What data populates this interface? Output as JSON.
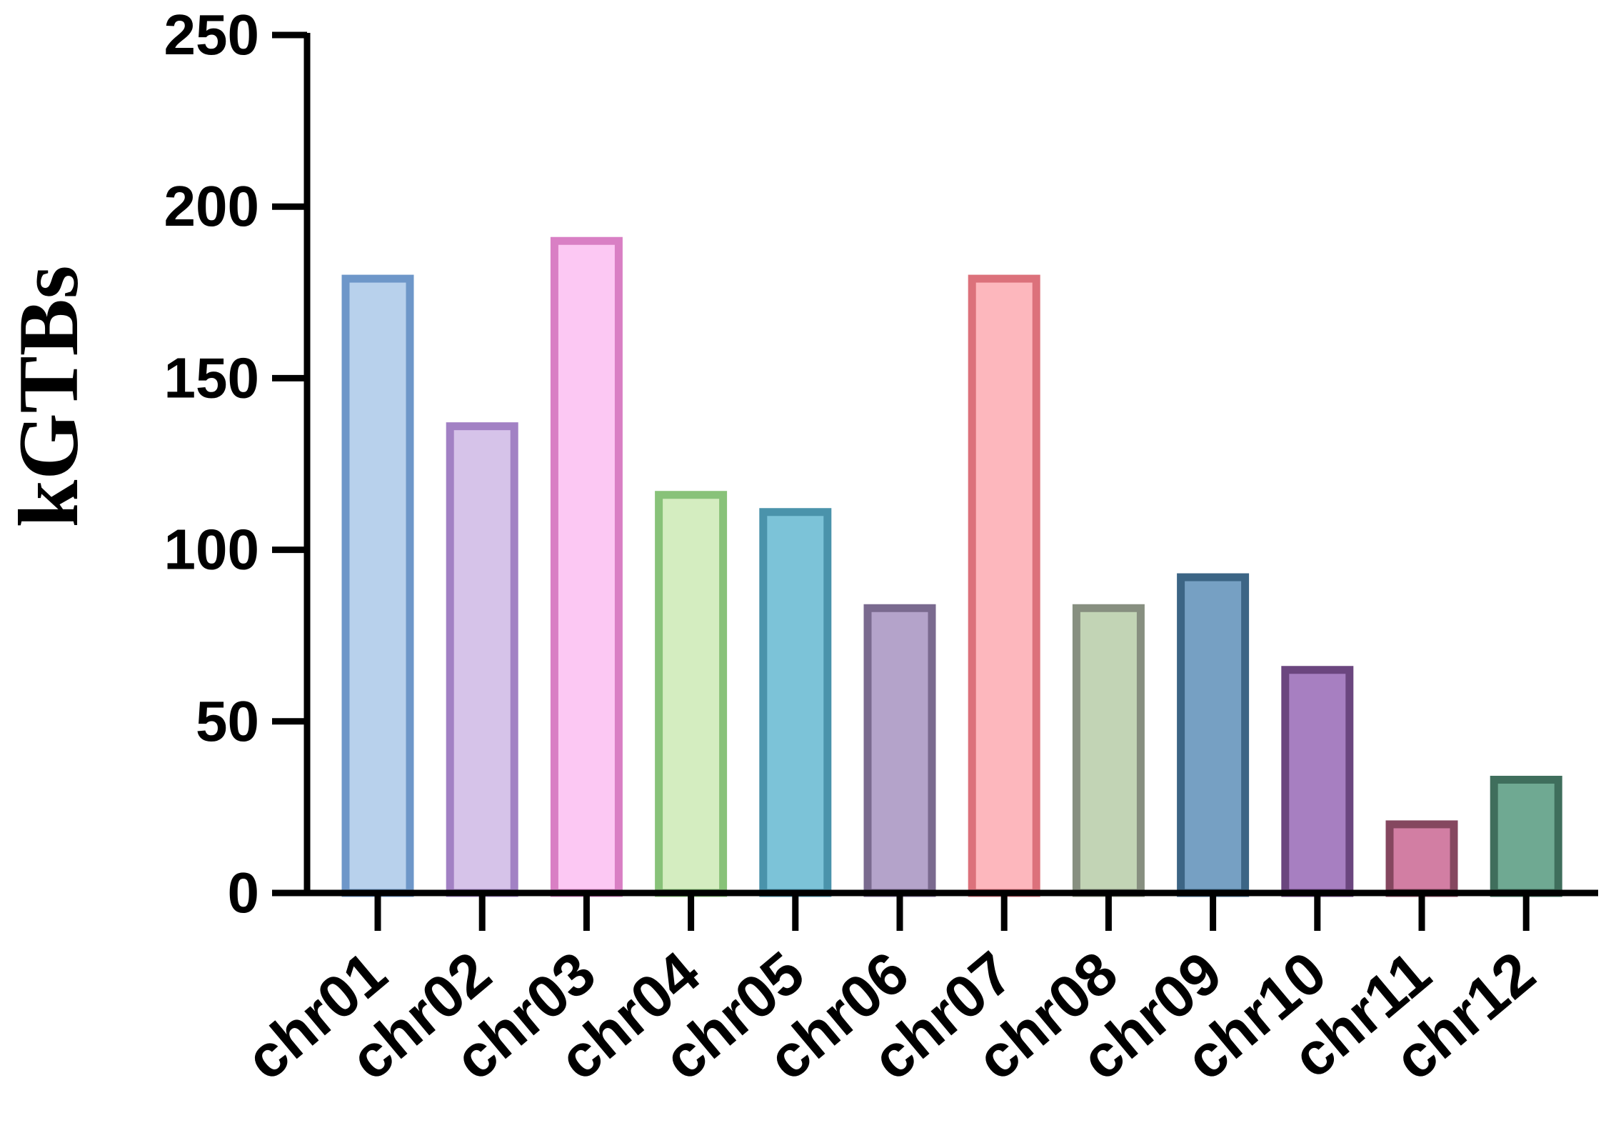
{
  "chart_data": {
    "type": "bar",
    "ylabel": "kGTBs",
    "xlabel": "",
    "ylim": [
      0,
      250
    ],
    "yticks": [
      0,
      50,
      100,
      150,
      200,
      250
    ],
    "categories": [
      "chr01",
      "chr02",
      "chr03",
      "chr04",
      "chr05",
      "chr06",
      "chr07",
      "chr08",
      "chr09",
      "chr10",
      "chr11",
      "chr12"
    ],
    "values": [
      179,
      136,
      190,
      116,
      111,
      83,
      179,
      83,
      92,
      65,
      20,
      33
    ],
    "fills": [
      "#b8d1ec",
      "#d6c3e9",
      "#fcc8f3",
      "#d4edc0",
      "#7cc3d8",
      "#b4a3ca",
      "#fdb7bd",
      "#c2d4b5",
      "#76a0c3",
      "#a77fc1",
      "#d27ea3",
      "#6fa992"
    ],
    "strokes": [
      "#6e97c9",
      "#a281c4",
      "#d97fc4",
      "#88c279",
      "#4a93ab",
      "#7a6a8f",
      "#dc717b",
      "#878f80",
      "#3c6585",
      "#6b467f",
      "#85475f",
      "#3f6e5c"
    ],
    "grid": false,
    "legend": "none"
  }
}
